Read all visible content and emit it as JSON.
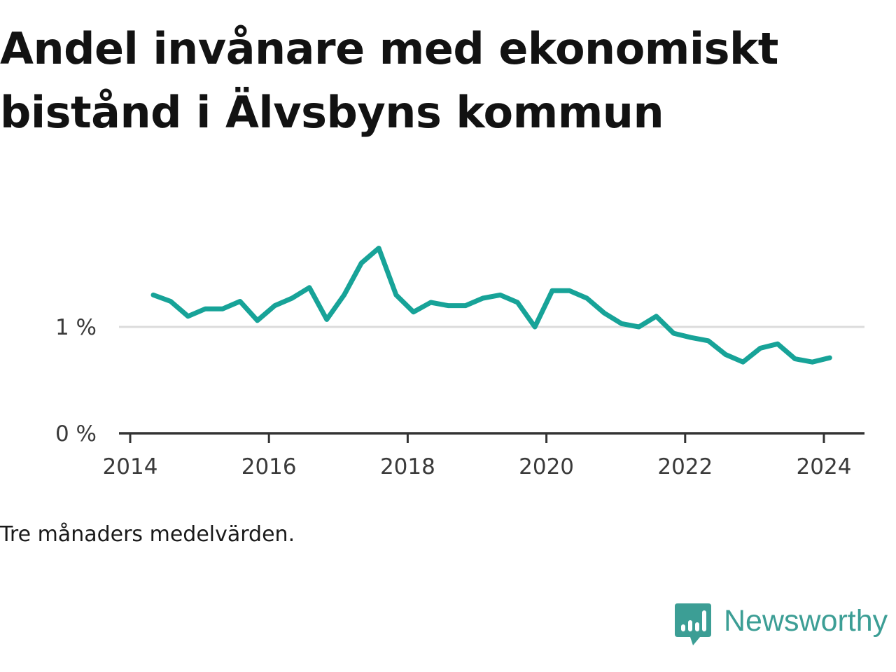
{
  "title": "Andel invånare med ekonomiskt bistånd i Älvsbyns kommun",
  "note": "Tre månaders medelvärden.",
  "brand": {
    "name": "Newsworthy",
    "icon": "newsworthy-logo-icon",
    "color": "#3c9e95"
  },
  "chart_data": {
    "type": "line",
    "title": "Andel invånare med ekonomiskt bistånd i Älvsbyns kommun",
    "xlabel": "",
    "ylabel": "",
    "x_ticks": [
      "2014",
      "2016",
      "2018",
      "2020",
      "2022",
      "2024"
    ],
    "y_ticks": [
      "0 %",
      "1 %"
    ],
    "xlim": [
      "2014-01",
      "2024-12"
    ],
    "ylim": [
      0,
      2.0
    ],
    "grid": "horizontal",
    "line_color": "#17a398",
    "series": [
      {
        "x": [
          "2014-05",
          "2014-08",
          "2014-11",
          "2015-02",
          "2015-05",
          "2015-08",
          "2015-11",
          "2016-02",
          "2016-05",
          "2016-08",
          "2016-11",
          "2017-02",
          "2017-05",
          "2017-08",
          "2017-11",
          "2018-02",
          "2018-05",
          "2018-08",
          "2018-11",
          "2019-02",
          "2019-05",
          "2019-08",
          "2019-11",
          "2020-02",
          "2020-05",
          "2020-08",
          "2020-11",
          "2021-02",
          "2021-05",
          "2021-08",
          "2021-11",
          "2022-02",
          "2022-05",
          "2022-08",
          "2022-11",
          "2023-02",
          "2023-05",
          "2023-08",
          "2023-11",
          "2024-02"
        ],
        "values": [
          1.3,
          1.24,
          1.1,
          1.17,
          1.17,
          1.24,
          1.06,
          1.2,
          1.27,
          1.37,
          1.07,
          1.3,
          1.6,
          1.74,
          1.3,
          1.14,
          1.23,
          1.2,
          1.2,
          1.27,
          1.3,
          1.23,
          1.0,
          1.34,
          1.34,
          1.27,
          1.13,
          1.03,
          1.0,
          1.1,
          0.94,
          0.9,
          0.87,
          0.74,
          0.67,
          0.8,
          0.84,
          0.7,
          0.67,
          0.71
        ]
      }
    ]
  }
}
